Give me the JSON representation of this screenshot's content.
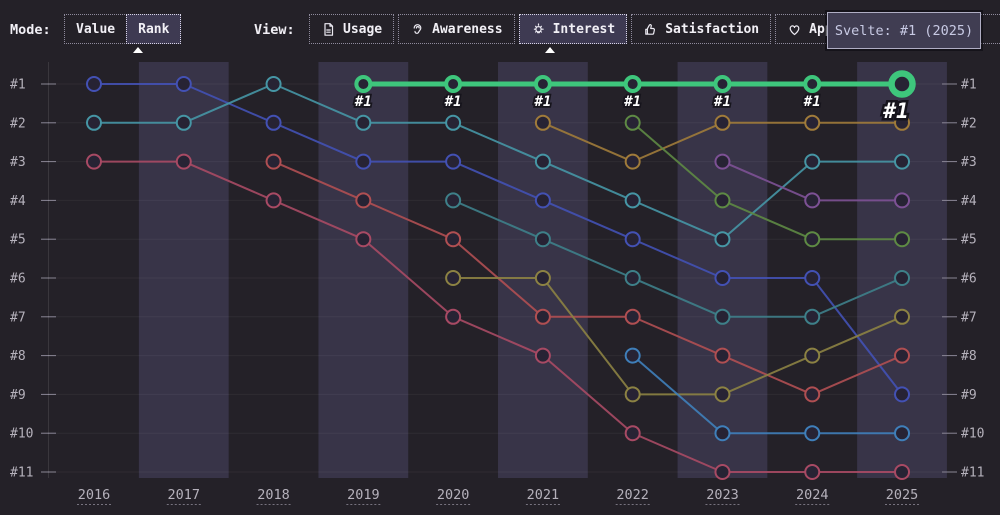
{
  "toolbar": {
    "mode_label": "Mode:",
    "modes": [
      {
        "label": "Value",
        "selected": false
      },
      {
        "label": "Rank",
        "selected": true
      }
    ],
    "view_label": "View:",
    "views": [
      {
        "label": "Usage",
        "icon": "document-icon",
        "selected": false
      },
      {
        "label": "Awareness",
        "icon": "ear-icon",
        "selected": false
      },
      {
        "label": "Interest",
        "icon": "lightbulb-icon",
        "selected": true
      },
      {
        "label": "Satisfaction",
        "icon": "thumbs-up-icon",
        "selected": false
      },
      {
        "label": "Appreciation",
        "icon": "heart-icon",
        "selected": false
      }
    ]
  },
  "tooltip": {
    "text": "Svelte: #1 (2025)"
  },
  "colors": {
    "background": "#242128",
    "year_band": "#383448",
    "axis_text": "#b5b1bb",
    "highlight_green": "#3ec67c",
    "tooltip_bg": "#403d52",
    "tooltip_border": "#b0aec4",
    "selected_button_bg": "#3e3a52"
  },
  "chart_data": {
    "type": "line",
    "subtype": "bump-rank",
    "metric_shown": "Interest",
    "mode_shown": "Rank",
    "x": [
      2016,
      2017,
      2018,
      2019,
      2020,
      2021,
      2022,
      2023,
      2024,
      2025
    ],
    "y_rank_labels": [
      "#1",
      "#2",
      "#3",
      "#4",
      "#5",
      "#6",
      "#7",
      "#8",
      "#9",
      "#10",
      "#11"
    ],
    "ylim": [
      1,
      11
    ],
    "grid": true,
    "banded_years": [
      2017,
      2019,
      2021,
      2023,
      2025
    ],
    "series": [
      {
        "id": "indigo",
        "name": null,
        "color": "#4351b4",
        "ranks": [
          1,
          1,
          2,
          3,
          3,
          4,
          5,
          6,
          6,
          9
        ],
        "highlight": false
      },
      {
        "id": "teal",
        "name": null,
        "color": "#4696a5",
        "ranks": [
          2,
          2,
          1,
          2,
          2,
          3,
          4,
          5,
          3,
          3
        ],
        "highlight": false
      },
      {
        "id": "rose",
        "name": null,
        "color": "#a84a64",
        "ranks": [
          3,
          3,
          4,
          5,
          7,
          8,
          10,
          11,
          11,
          11
        ],
        "highlight": false
      },
      {
        "id": "red",
        "name": null,
        "color": "#b04f52",
        "ranks": [
          null,
          null,
          3,
          4,
          5,
          7,
          7,
          8,
          9,
          8
        ],
        "highlight": false
      },
      {
        "id": "teal2",
        "name": null,
        "color": "#3e8089",
        "ranks": [
          null,
          null,
          null,
          null,
          4,
          5,
          6,
          7,
          7,
          6
        ],
        "highlight": false
      },
      {
        "id": "olive",
        "name": null,
        "color": "#8c8243",
        "ranks": [
          null,
          null,
          null,
          null,
          6,
          6,
          9,
          9,
          8,
          7
        ],
        "highlight": false
      },
      {
        "id": "gold",
        "name": null,
        "color": "#a07b3a",
        "ranks": [
          null,
          null,
          null,
          null,
          null,
          2,
          3,
          2,
          2,
          2
        ],
        "highlight": false
      },
      {
        "id": "green2",
        "name": null,
        "color": "#5e8a44",
        "ranks": [
          null,
          null,
          null,
          null,
          null,
          null,
          2,
          4,
          5,
          5
        ],
        "highlight": false
      },
      {
        "id": "blue2",
        "name": null,
        "color": "#3f7fba",
        "ranks": [
          null,
          null,
          null,
          null,
          null,
          null,
          8,
          10,
          10,
          10
        ],
        "highlight": false
      },
      {
        "id": "purple",
        "name": null,
        "color": "#7d5195",
        "ranks": [
          null,
          null,
          null,
          null,
          null,
          null,
          null,
          3,
          4,
          4
        ],
        "highlight": false
      },
      {
        "id": "svelte",
        "name": "Svelte",
        "color": "#3ec67c",
        "ranks": [
          null,
          null,
          null,
          1,
          1,
          1,
          1,
          1,
          1,
          1
        ],
        "highlight": true,
        "point_label": "#1",
        "final_point_label": "#1",
        "final_point_year": 2025
      }
    ]
  }
}
